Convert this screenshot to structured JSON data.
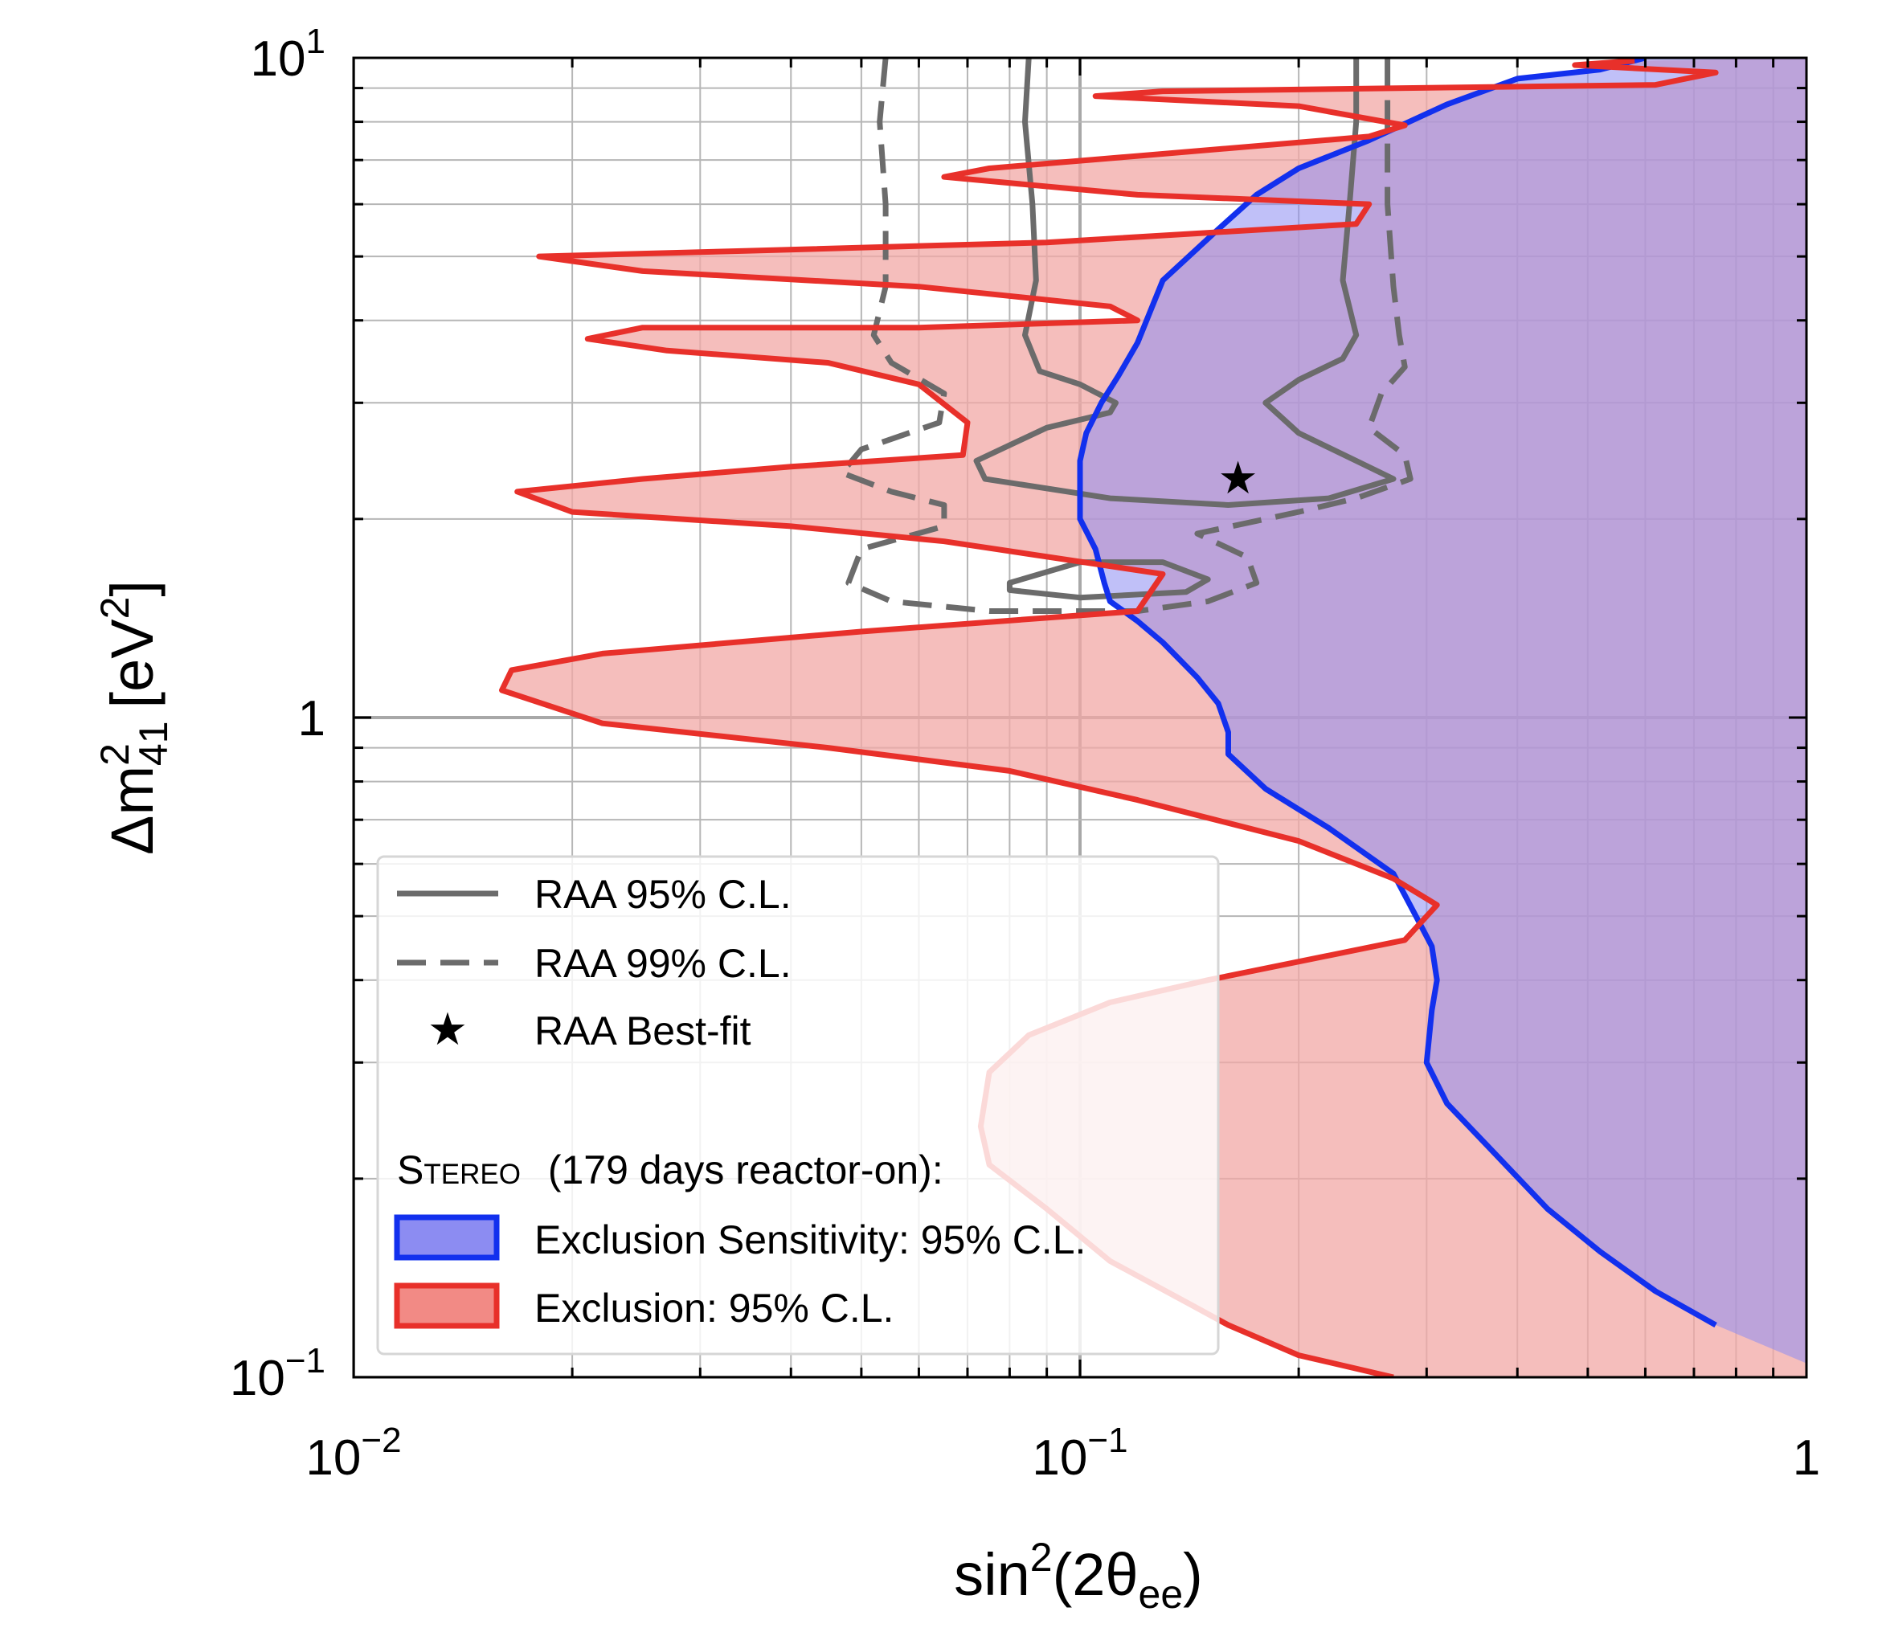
{
  "chart_data": {
    "type": "area",
    "xlabel": "sin²(2θee)",
    "ylabel": "Δm²41 [eV²]",
    "x_scale": "log",
    "y_scale": "log",
    "xlim": [
      0.01,
      1
    ],
    "ylim": [
      0.1,
      10
    ],
    "grid": true,
    "legend_position": "bottom-left",
    "x_ticks": [
      {
        "value": 0.01,
        "base": "10",
        "exp": "−2"
      },
      {
        "value": 0.1,
        "base": "10",
        "exp": "−1"
      },
      {
        "value": 1,
        "base": "1",
        "exp": ""
      }
    ],
    "y_ticks": [
      {
        "value": 10,
        "base": "10",
        "exp": "1"
      },
      {
        "value": 1,
        "base": "1",
        "exp": ""
      },
      {
        "value": 0.1,
        "base": "10",
        "exp": "−1"
      }
    ],
    "series": [
      {
        "name": "Exclusion: 95% C.L.",
        "color": "#e8302a",
        "fill": "#f2a8a6",
        "style": "solid",
        "points": [
          [
            1.0,
            10.0
          ],
          [
            0.58,
            9.9
          ],
          [
            0.48,
            9.75
          ],
          [
            0.75,
            9.5
          ],
          [
            0.62,
            9.1
          ],
          [
            0.28,
            9.0
          ],
          [
            0.13,
            8.9
          ],
          [
            0.105,
            8.75
          ],
          [
            0.2,
            8.45
          ],
          [
            0.28,
            7.9
          ],
          [
            0.25,
            7.6
          ],
          [
            0.12,
            7.1
          ],
          [
            0.075,
            6.8
          ],
          [
            0.065,
            6.6
          ],
          [
            0.12,
            6.2
          ],
          [
            0.25,
            6.0
          ],
          [
            0.24,
            5.6
          ],
          [
            0.09,
            5.25
          ],
          [
            0.035,
            5.1
          ],
          [
            0.018,
            5.0
          ],
          [
            0.025,
            4.75
          ],
          [
            0.06,
            4.5
          ],
          [
            0.11,
            4.2
          ],
          [
            0.12,
            4.0
          ],
          [
            0.06,
            3.9
          ],
          [
            0.025,
            3.9
          ],
          [
            0.021,
            3.75
          ],
          [
            0.027,
            3.6
          ],
          [
            0.045,
            3.45
          ],
          [
            0.06,
            3.2
          ],
          [
            0.07,
            2.8
          ],
          [
            0.069,
            2.5
          ],
          [
            0.04,
            2.4
          ],
          [
            0.025,
            2.3
          ],
          [
            0.0168,
            2.2
          ],
          [
            0.02,
            2.05
          ],
          [
            0.04,
            1.95
          ],
          [
            0.065,
            1.85
          ],
          [
            0.13,
            1.65
          ],
          [
            0.12,
            1.45
          ],
          [
            0.05,
            1.35
          ],
          [
            0.022,
            1.25
          ],
          [
            0.0165,
            1.18
          ],
          [
            0.016,
            1.1
          ],
          [
            0.022,
            0.98
          ],
          [
            0.045,
            0.9
          ],
          [
            0.08,
            0.83
          ],
          [
            0.12,
            0.75
          ],
          [
            0.2,
            0.65
          ],
          [
            0.27,
            0.57
          ],
          [
            0.31,
            0.52
          ],
          [
            0.28,
            0.46
          ],
          [
            0.15,
            0.4
          ],
          [
            0.11,
            0.37
          ],
          [
            0.085,
            0.33
          ],
          [
            0.075,
            0.29
          ],
          [
            0.073,
            0.24
          ],
          [
            0.075,
            0.21
          ],
          [
            0.09,
            0.18
          ],
          [
            0.11,
            0.15
          ],
          [
            0.14,
            0.13
          ],
          [
            0.16,
            0.12
          ],
          [
            0.2,
            0.108
          ],
          [
            0.27,
            0.1
          ],
          [
            1.0,
            0.1
          ]
        ]
      },
      {
        "name": "Exclusion Sensitivity: 95% C.L.",
        "color": "#1230ee",
        "fill": "#8c8cf2",
        "style": "solid",
        "points": [
          [
            1.0,
            10.0
          ],
          [
            0.6,
            10.0
          ],
          [
            0.52,
            9.6
          ],
          [
            0.4,
            9.3
          ],
          [
            0.32,
            8.5
          ],
          [
            0.25,
            7.5
          ],
          [
            0.2,
            6.8
          ],
          [
            0.175,
            6.2
          ],
          [
            0.155,
            5.5
          ],
          [
            0.13,
            4.6
          ],
          [
            0.12,
            3.7
          ],
          [
            0.113,
            3.3
          ],
          [
            0.107,
            3.0
          ],
          [
            0.102,
            2.7
          ],
          [
            0.1,
            2.45
          ],
          [
            0.1,
            2.0
          ],
          [
            0.105,
            1.8
          ],
          [
            0.108,
            1.6
          ],
          [
            0.11,
            1.5
          ],
          [
            0.12,
            1.4
          ],
          [
            0.13,
            1.3
          ],
          [
            0.145,
            1.15
          ],
          [
            0.155,
            1.05
          ],
          [
            0.16,
            0.95
          ],
          [
            0.16,
            0.88
          ],
          [
            0.18,
            0.78
          ],
          [
            0.22,
            0.68
          ],
          [
            0.27,
            0.58
          ],
          [
            0.29,
            0.5
          ],
          [
            0.305,
            0.45
          ],
          [
            0.31,
            0.4
          ],
          [
            0.305,
            0.36
          ],
          [
            0.3,
            0.3
          ],
          [
            0.32,
            0.26
          ],
          [
            0.37,
            0.22
          ],
          [
            0.44,
            0.18
          ],
          [
            0.52,
            0.155
          ],
          [
            0.62,
            0.135
          ],
          [
            0.75,
            0.12
          ],
          [
            1.0,
            0.105
          ]
        ]
      },
      {
        "name": "RAA 95% C.L.",
        "color": "#6b6b6b",
        "style": "solid",
        "points": [
          [
            0.085,
            10.0
          ],
          [
            0.084,
            8.0
          ],
          [
            0.086,
            6.0
          ],
          [
            0.087,
            4.6
          ],
          [
            0.084,
            3.8
          ],
          [
            0.088,
            3.35
          ],
          [
            0.1,
            3.2
          ],
          [
            0.112,
            3.0
          ],
          [
            0.11,
            2.9
          ],
          [
            0.09,
            2.75
          ],
          [
            0.072,
            2.45
          ],
          [
            0.074,
            2.3
          ],
          [
            0.11,
            2.15
          ],
          [
            0.16,
            2.1
          ],
          [
            0.22,
            2.15
          ],
          [
            0.27,
            2.3
          ],
          [
            0.24,
            2.45
          ],
          [
            0.2,
            2.7
          ],
          [
            0.18,
            3.0
          ],
          [
            0.2,
            3.25
          ],
          [
            0.23,
            3.5
          ],
          [
            0.24,
            3.8
          ],
          [
            0.23,
            4.6
          ],
          [
            0.235,
            6.0
          ],
          [
            0.24,
            8.0
          ],
          [
            0.24,
            10.0
          ]
        ]
      },
      {
        "name": "RAA 95% C.L.",
        "color": "#6b6b6b",
        "style": "solid",
        "points": [
          [
            0.08,
            1.6
          ],
          [
            0.1,
            1.72
          ],
          [
            0.13,
            1.72
          ],
          [
            0.15,
            1.62
          ],
          [
            0.14,
            1.55
          ],
          [
            0.1,
            1.52
          ],
          [
            0.08,
            1.56
          ],
          [
            0.08,
            1.6
          ]
        ]
      },
      {
        "name": "RAA 99% C.L.",
        "color": "#6b6b6b",
        "style": "dashed",
        "points": [
          [
            0.054,
            10.0
          ],
          [
            0.053,
            8.0
          ],
          [
            0.054,
            6.0
          ],
          [
            0.054,
            4.5
          ],
          [
            0.052,
            3.8
          ],
          [
            0.055,
            3.45
          ],
          [
            0.065,
            3.1
          ],
          [
            0.064,
            2.8
          ],
          [
            0.05,
            2.55
          ],
          [
            0.047,
            2.35
          ],
          [
            0.055,
            2.2
          ],
          [
            0.065,
            2.1
          ],
          [
            0.065,
            1.95
          ],
          [
            0.05,
            1.8
          ],
          [
            0.048,
            1.6
          ],
          [
            0.055,
            1.5
          ],
          [
            0.075,
            1.45
          ],
          [
            0.12,
            1.45
          ],
          [
            0.15,
            1.5
          ],
          [
            0.175,
            1.6
          ],
          [
            0.17,
            1.75
          ],
          [
            0.145,
            1.9
          ],
          [
            0.2,
            2.05
          ],
          [
            0.24,
            2.15
          ],
          [
            0.285,
            2.3
          ],
          [
            0.28,
            2.5
          ],
          [
            0.25,
            2.75
          ],
          [
            0.26,
            3.1
          ],
          [
            0.28,
            3.4
          ],
          [
            0.275,
            3.8
          ],
          [
            0.27,
            4.5
          ],
          [
            0.265,
            6.0
          ],
          [
            0.265,
            8.0
          ],
          [
            0.265,
            10.0
          ]
        ]
      }
    ],
    "best_fit": {
      "name": "RAA Best-fit",
      "x": 0.165,
      "y": 2.3,
      "color": "#2b0a25"
    },
    "legend": {
      "group_title_smallcaps": "Stereo",
      "group_title_rest": "(179 days reactor-on):"
    }
  }
}
